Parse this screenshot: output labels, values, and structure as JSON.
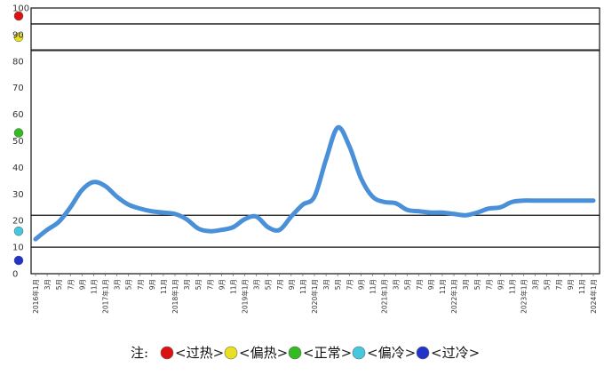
{
  "chart_data": {
    "type": "line",
    "title": "",
    "xlabel": "",
    "ylabel": "",
    "ylim": [
      0,
      100
    ],
    "y_ticks": [
      0,
      10,
      20,
      30,
      40,
      50,
      60,
      70,
      80,
      90,
      100
    ],
    "grid": false,
    "x": [
      "2016年1月",
      "3月",
      "5月",
      "7月",
      "9月",
      "11月",
      "2017年1月",
      "3月",
      "5月",
      "7月",
      "9月",
      "11月",
      "2018年1月",
      "3月",
      "5月",
      "7月",
      "9月",
      "11月",
      "2019年1月",
      "3月",
      "5月",
      "7月",
      "9月",
      "11月",
      "2020年1月",
      "3月",
      "5月",
      "7月",
      "9月",
      "11月",
      "2021年1月",
      "3月",
      "5月",
      "7月",
      "9月",
      "11月",
      "2022年1月",
      "3月",
      "5月",
      "7月",
      "9月",
      "11月",
      "2023年1月",
      "3月",
      "5月",
      "7月",
      "9月",
      "11月",
      "2024年1月"
    ],
    "series": [
      {
        "color": "#4a90d9",
        "values": [
          13,
          16.5,
          19.5,
          25,
          31.5,
          34.5,
          33,
          29,
          26,
          24.5,
          23.5,
          23,
          22.5,
          20.5,
          17,
          16,
          16.5,
          17.5,
          20.5,
          21.5,
          17.5,
          16.5,
          21.5,
          26,
          29,
          43,
          55,
          48,
          36,
          29,
          27,
          26.5,
          24,
          23.5,
          23,
          23,
          22.5,
          22,
          23,
          24.5,
          25,
          27,
          27.5,
          27.5,
          27.5,
          27.5,
          27.5,
          27.5,
          27.5
        ]
      }
    ],
    "bands": [
      {
        "range": [
          0,
          10
        ],
        "status": "过冷",
        "color": "#2233cc"
      },
      {
        "range": [
          10,
          22
        ],
        "status": "偏冷",
        "color": "#44c8dd"
      },
      {
        "range": [
          22,
          84
        ],
        "status": "正常",
        "color": "#33bb22"
      },
      {
        "range": [
          84,
          94
        ],
        "status": "偏热",
        "color": "#e8e020"
      },
      {
        "range": [
          94,
          100
        ],
        "status": "过热",
        "color": "#dd1111"
      }
    ]
  },
  "legend": {
    "note_label": "注:",
    "items": [
      {
        "label": "<过热>",
        "color": "#dd1111"
      },
      {
        "label": "<偏热>",
        "color": "#e8e020"
      },
      {
        "label": "<正常>",
        "color": "#33bb22"
      },
      {
        "label": "<偏冷>",
        "color": "#44c8dd"
      },
      {
        "label": "<过冷>",
        "color": "#2233cc"
      }
    ]
  }
}
